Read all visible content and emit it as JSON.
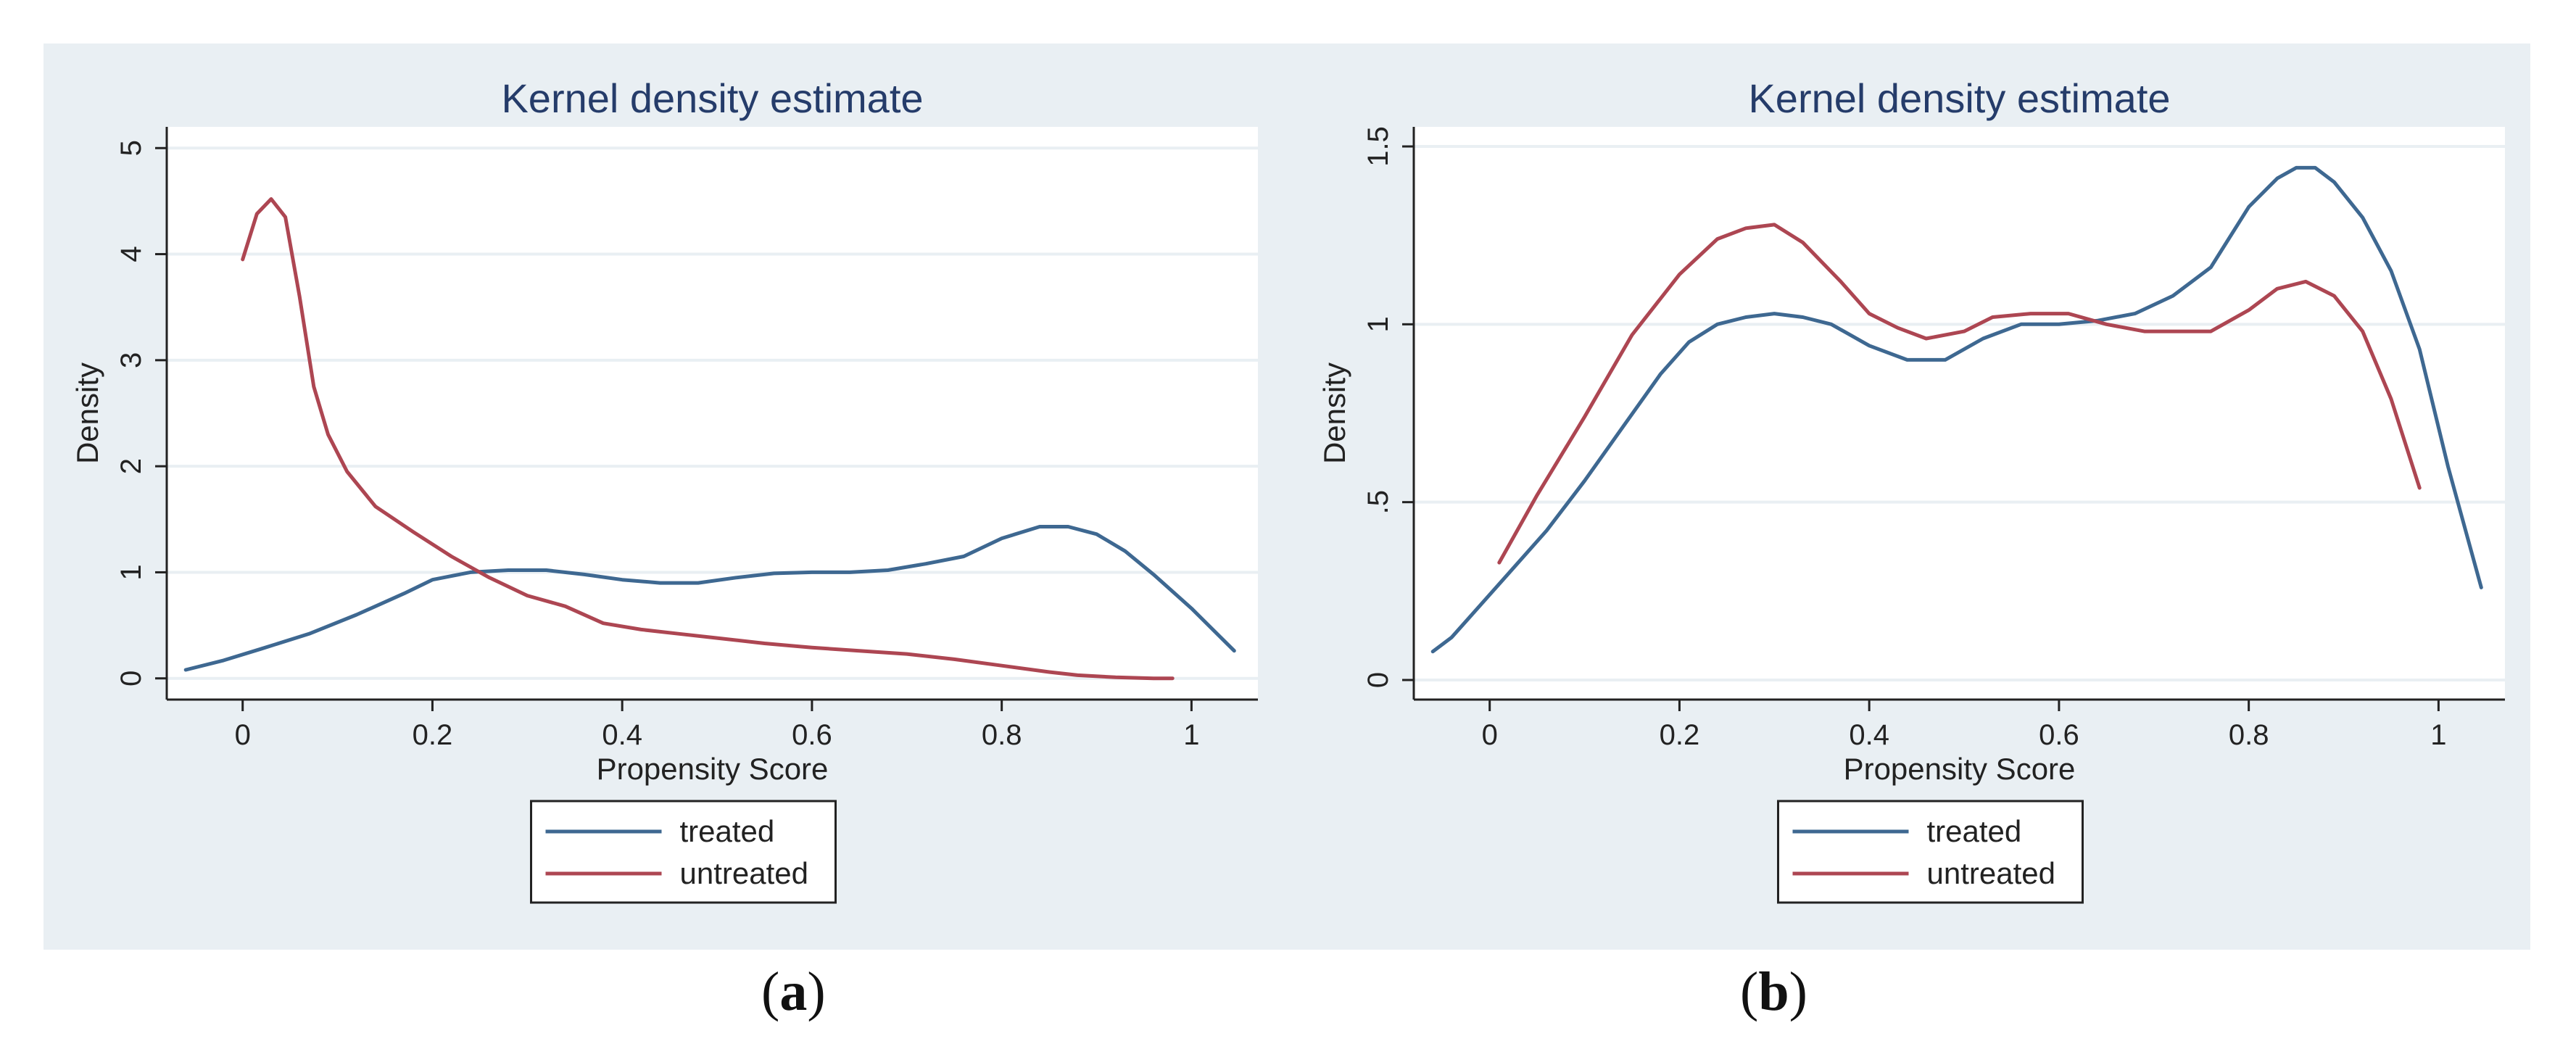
{
  "colors": {
    "panel_background": "#e9eff3",
    "plot_background": "#ffffff",
    "gridline": "#e9eff3",
    "title": "#253c6a",
    "axis": "#222222",
    "treated": "#3e6891",
    "untreated": "#ad4652"
  },
  "chart_data": [
    {
      "type": "line",
      "panel_label": "a",
      "title": "Kernel density estimate",
      "xlabel": "Propensity Score",
      "ylabel": "Density",
      "xlim": [
        -0.08,
        1.07
      ],
      "ylim": [
        -0.2,
        5.2
      ],
      "xticks": [
        0,
        0.2,
        0.4,
        0.6,
        0.8,
        1
      ],
      "xtick_labels": [
        "0",
        "0.2",
        "0.4",
        "0.6",
        "0.8",
        "1"
      ],
      "yticks": [
        0,
        1,
        2,
        3,
        4,
        5
      ],
      "ytick_labels": [
        "0",
        "1",
        "2",
        "3",
        "4",
        "5"
      ],
      "grid": true,
      "legend_position": "bottom-center",
      "series": [
        {
          "name": "treated",
          "x": [
            -0.06,
            -0.02,
            0.02,
            0.07,
            0.12,
            0.17,
            0.2,
            0.24,
            0.28,
            0.32,
            0.36,
            0.4,
            0.44,
            0.48,
            0.52,
            0.56,
            0.6,
            0.64,
            0.68,
            0.72,
            0.76,
            0.8,
            0.84,
            0.87,
            0.9,
            0.93,
            0.96,
            1.0,
            1.045
          ],
          "y": [
            0.08,
            0.17,
            0.28,
            0.42,
            0.6,
            0.8,
            0.93,
            1.0,
            1.02,
            1.02,
            0.98,
            0.93,
            0.9,
            0.9,
            0.95,
            0.99,
            1.0,
            1.0,
            1.02,
            1.08,
            1.15,
            1.32,
            1.43,
            1.43,
            1.36,
            1.2,
            0.98,
            0.66,
            0.26
          ]
        },
        {
          "name": "untreated",
          "x": [
            0.0,
            0.015,
            0.03,
            0.045,
            0.06,
            0.075,
            0.09,
            0.11,
            0.14,
            0.18,
            0.22,
            0.26,
            0.3,
            0.34,
            0.38,
            0.42,
            0.46,
            0.5,
            0.55,
            0.6,
            0.65,
            0.7,
            0.75,
            0.8,
            0.85,
            0.88,
            0.92,
            0.96,
            0.98
          ],
          "y": [
            3.95,
            4.38,
            4.52,
            4.35,
            3.6,
            2.75,
            2.3,
            1.95,
            1.62,
            1.38,
            1.15,
            0.95,
            0.78,
            0.68,
            0.52,
            0.46,
            0.42,
            0.38,
            0.33,
            0.29,
            0.26,
            0.23,
            0.18,
            0.12,
            0.06,
            0.03,
            0.01,
            0.0,
            0.0
          ]
        }
      ]
    },
    {
      "type": "line",
      "panel_label": "b",
      "title": "Kernel density estimate",
      "xlabel": "Propensity Score",
      "ylabel": "Density",
      "xlim": [
        -0.08,
        1.07
      ],
      "ylim": [
        -0.055,
        1.555
      ],
      "xticks": [
        0,
        0.2,
        0.4,
        0.6,
        0.8,
        1
      ],
      "xtick_labels": [
        "0",
        "0.2",
        "0.4",
        "0.6",
        "0.8",
        "1"
      ],
      "yticks": [
        0,
        0.5,
        1,
        1.5
      ],
      "ytick_labels": [
        "0",
        ".5",
        "1",
        "1.5"
      ],
      "grid": true,
      "legend_position": "bottom-center",
      "series": [
        {
          "name": "treated",
          "x": [
            -0.06,
            -0.04,
            -0.02,
            0.02,
            0.06,
            0.1,
            0.14,
            0.18,
            0.21,
            0.24,
            0.27,
            0.3,
            0.33,
            0.36,
            0.4,
            0.44,
            0.48,
            0.52,
            0.56,
            0.6,
            0.64,
            0.68,
            0.72,
            0.76,
            0.8,
            0.83,
            0.85,
            0.87,
            0.89,
            0.92,
            0.95,
            0.98,
            1.01,
            1.045
          ],
          "y": [
            0.08,
            0.12,
            0.18,
            0.3,
            0.42,
            0.56,
            0.71,
            0.86,
            0.95,
            1.0,
            1.02,
            1.03,
            1.02,
            1.0,
            0.94,
            0.9,
            0.9,
            0.96,
            1.0,
            1.0,
            1.01,
            1.03,
            1.08,
            1.16,
            1.33,
            1.41,
            1.44,
            1.44,
            1.4,
            1.3,
            1.15,
            0.93,
            0.6,
            0.26
          ]
        },
        {
          "name": "untreated",
          "x": [
            0.01,
            0.05,
            0.1,
            0.15,
            0.2,
            0.24,
            0.27,
            0.3,
            0.33,
            0.37,
            0.4,
            0.43,
            0.46,
            0.5,
            0.53,
            0.57,
            0.61,
            0.65,
            0.69,
            0.73,
            0.76,
            0.8,
            0.83,
            0.86,
            0.89,
            0.92,
            0.95,
            0.98
          ],
          "y": [
            0.33,
            0.52,
            0.74,
            0.97,
            1.14,
            1.24,
            1.27,
            1.28,
            1.23,
            1.12,
            1.03,
            0.99,
            0.96,
            0.98,
            1.02,
            1.03,
            1.03,
            1.0,
            0.98,
            0.98,
            0.98,
            1.04,
            1.1,
            1.12,
            1.08,
            0.98,
            0.79,
            0.54
          ]
        }
      ]
    }
  ]
}
